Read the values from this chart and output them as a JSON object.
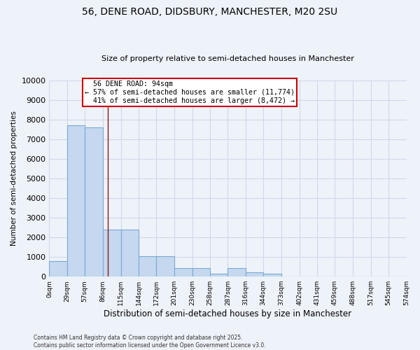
{
  "title_line1": "56, DENE ROAD, DIDSBURY, MANCHESTER, M20 2SU",
  "title_line2": "Size of property relative to semi-detached houses in Manchester",
  "xlabel": "Distribution of semi-detached houses by size in Manchester",
  "ylabel": "Number of semi-detached properties",
  "bin_edges": [
    0,
    29,
    57,
    86,
    115,
    144,
    172,
    201,
    230,
    258,
    287,
    316,
    344,
    373,
    402,
    431,
    459,
    488,
    517,
    545,
    574
  ],
  "bar_heights": [
    800,
    7700,
    7600,
    2400,
    2400,
    1050,
    1050,
    450,
    450,
    150,
    450,
    230,
    150,
    0,
    0,
    0,
    0,
    0,
    0,
    0
  ],
  "bar_color": "#c5d8f0",
  "bar_edge_color": "#7aaad0",
  "property_size": 94,
  "property_label": "56 DENE ROAD: 94sqm",
  "pct_smaller": 57,
  "num_smaller": 11774,
  "pct_larger": 41,
  "num_larger": 8472,
  "vline_color": "#8b1a1a",
  "annotation_box_color": "#cc0000",
  "background_color": "#eef2f9",
  "grid_color": "#d0d8e8",
  "ylim": [
    0,
    10000
  ],
  "yticks": [
    0,
    1000,
    2000,
    3000,
    4000,
    5000,
    6000,
    7000,
    8000,
    9000,
    10000
  ],
  "footer_line1": "Contains HM Land Registry data © Crown copyright and database right 2025.",
  "footer_line2": "Contains public sector information licensed under the Open Government Licence v3.0."
}
